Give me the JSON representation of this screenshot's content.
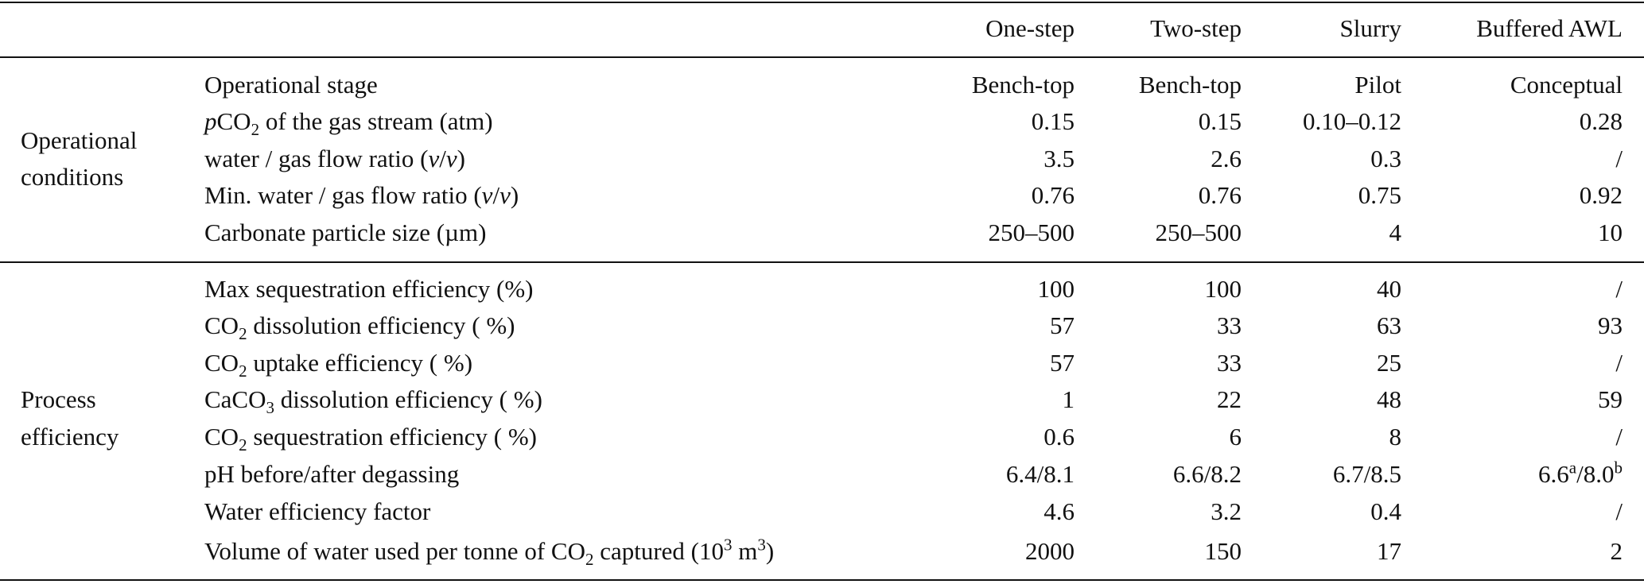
{
  "table": {
    "header": [
      "One-step",
      "Two-step",
      "Slurry",
      "Buffered AWL"
    ],
    "groups": [
      {
        "label": [
          "Operational",
          "conditions"
        ],
        "rows": [
          {
            "label": [
              "Operational stage"
            ],
            "cells": [
              "Bench-top",
              "Bench-top",
              "Pilot",
              "Conceptual"
            ]
          },
          {
            "label": [
              {
                "i": "p"
              },
              "CO",
              {
                "sub": "2"
              },
              " of the gas stream (atm)"
            ],
            "cells": [
              "0.15",
              "0.15",
              "0.10–0.12",
              "0.28"
            ]
          },
          {
            "label": [
              "water / gas flow ratio (",
              {
                "i": "v"
              },
              "/",
              {
                "i": "v"
              },
              ")"
            ],
            "cells": [
              "3.5",
              "2.6",
              "0.3",
              "/"
            ]
          },
          {
            "label": [
              "Min. water / gas flow ratio (",
              {
                "i": "v"
              },
              "/",
              {
                "i": "v"
              },
              ")"
            ],
            "cells": [
              "0.76",
              "0.76",
              "0.75",
              "0.92"
            ]
          },
          {
            "label": [
              "Carbonate particle size (µm)"
            ],
            "cells": [
              "250–500",
              "250–500",
              "4",
              "10"
            ]
          }
        ]
      },
      {
        "label": [
          "Process",
          "efficiency"
        ],
        "rows": [
          {
            "label": [
              "Max sequestration efficiency (%)"
            ],
            "cells": [
              "100",
              "100",
              "40",
              "/"
            ]
          },
          {
            "label": [
              "CO",
              {
                "sub": "2"
              },
              " dissolution efficiency ( %)"
            ],
            "cells": [
              "57",
              "33",
              "63",
              "93"
            ]
          },
          {
            "label": [
              "CO",
              {
                "sub": "2"
              },
              " uptake efficiency ( %)"
            ],
            "cells": [
              "57",
              "33",
              "25",
              "/"
            ]
          },
          {
            "label": [
              "CaCO",
              {
                "sub": "3"
              },
              " dissolution efficiency ( %)"
            ],
            "cells": [
              "1",
              "22",
              "48",
              "59"
            ]
          },
          {
            "label": [
              "CO",
              {
                "sub": "2"
              },
              " sequestration efficiency ( %)"
            ],
            "cells": [
              "0.6",
              "6",
              "8",
              "/"
            ]
          },
          {
            "label": [
              "pH before/after degassing"
            ],
            "cells": [
              "6.4/8.1",
              "6.6/8.2",
              "6.7/8.5",
              [
                "6.6",
                {
                  "sup": "a"
                },
                "/8.0",
                {
                  "sup": "b"
                }
              ]
            ]
          },
          {
            "label": [
              "Water efficiency factor"
            ],
            "cells": [
              "4.6",
              "3.2",
              "0.4",
              "/"
            ]
          },
          {
            "label": [
              "Volume of water used per tonne of CO",
              {
                "sub": "2"
              },
              " captured (10",
              {
                "sup": "3"
              },
              " m",
              {
                "sup": "3"
              },
              ")"
            ],
            "cells": [
              "2000",
              "150",
              "17",
              "2"
            ]
          }
        ]
      }
    ]
  }
}
